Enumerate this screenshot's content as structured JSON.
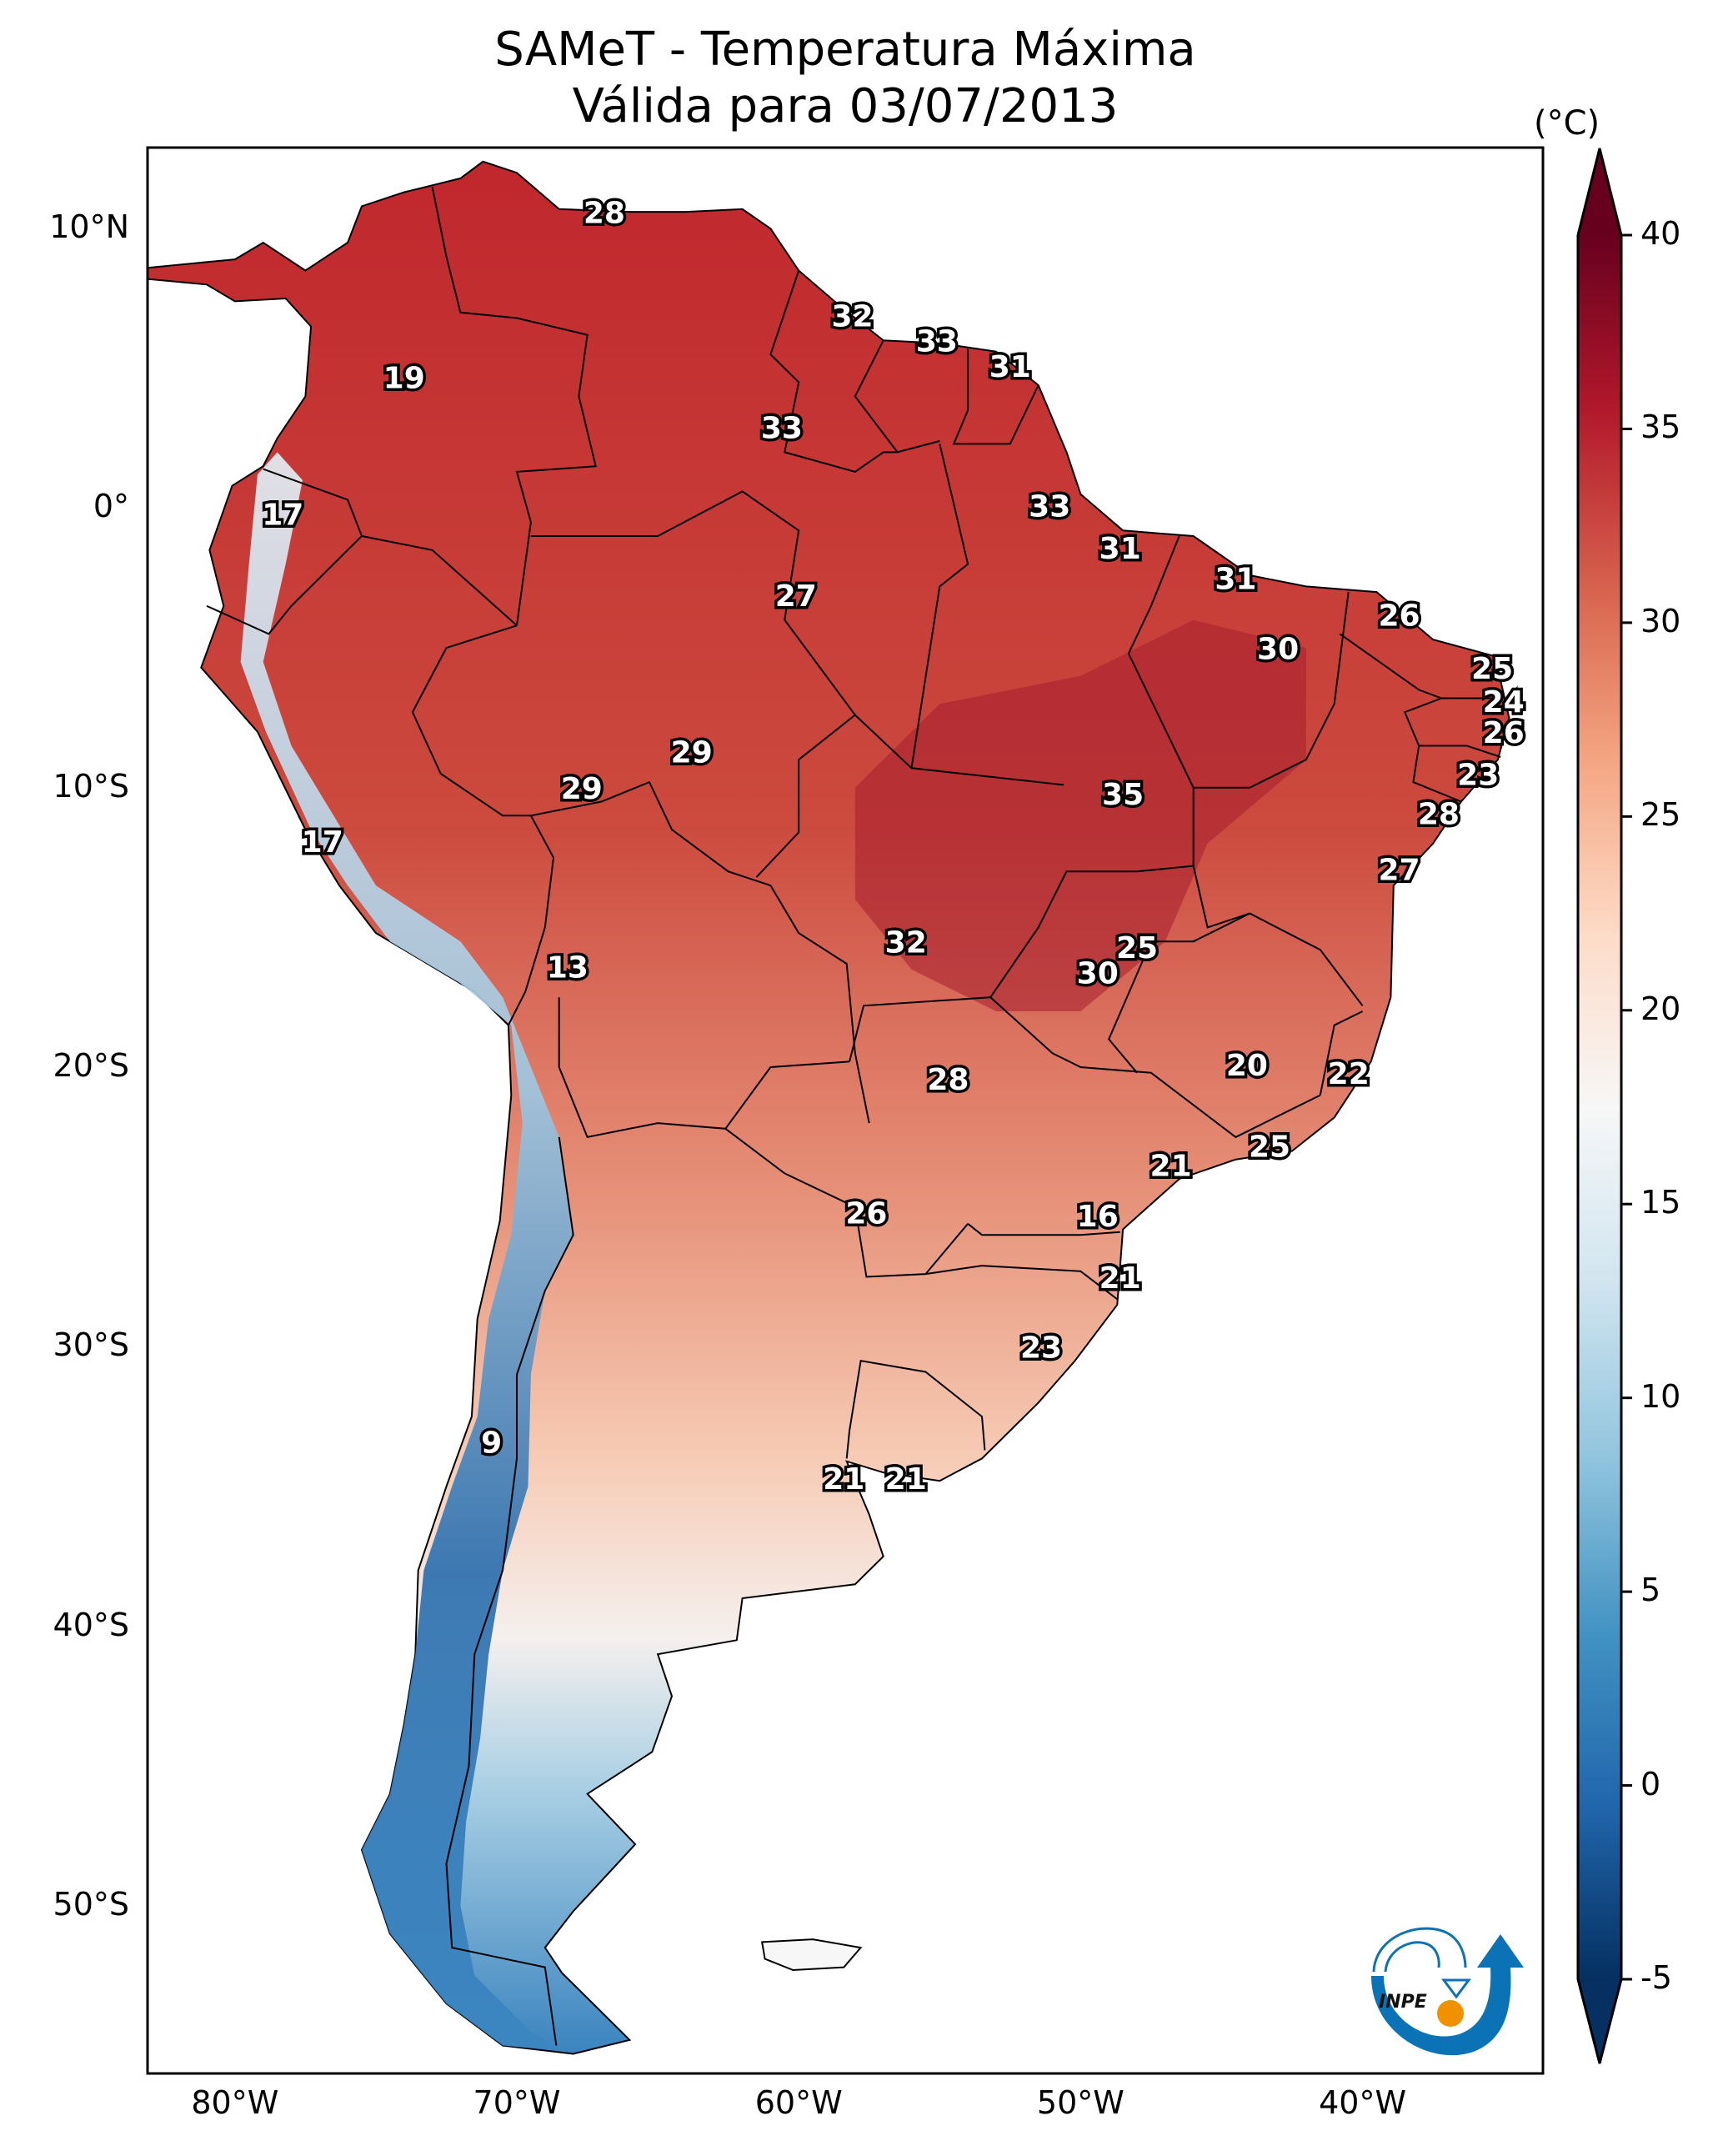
{
  "title": {
    "line1": "SAMeT - Temperatura Máxima",
    "line2": "Válida para 03/07/2013"
  },
  "axes": {
    "lat_ticks": [
      {
        "value": 10,
        "label": "10°N"
      },
      {
        "value": 0,
        "label": "0°"
      },
      {
        "value": -10,
        "label": "10°S"
      },
      {
        "value": -20,
        "label": "20°S"
      },
      {
        "value": -30,
        "label": "30°S"
      },
      {
        "value": -40,
        "label": "40°S"
      },
      {
        "value": -50,
        "label": "50°S"
      }
    ],
    "lon_ticks": [
      {
        "value": -80,
        "label": "80°W"
      },
      {
        "value": -70,
        "label": "70°W"
      },
      {
        "value": -60,
        "label": "60°W"
      },
      {
        "value": -50,
        "label": "50°W"
      },
      {
        "value": -40,
        "label": "40°W"
      }
    ],
    "lon_range": [
      -83.1,
      -33.6
    ],
    "lat_range": [
      -56.0,
      12.9
    ]
  },
  "colorbar": {
    "unit": "(°C)",
    "min": -5,
    "max": 40,
    "extend": "both",
    "colormap": "RdBu_r",
    "ticks": [
      {
        "value": 40,
        "label": "40"
      },
      {
        "value": 35,
        "label": "35"
      },
      {
        "value": 30,
        "label": "30"
      },
      {
        "value": 25,
        "label": "25"
      },
      {
        "value": 20,
        "label": "20"
      },
      {
        "value": 15,
        "label": "15"
      },
      {
        "value": 10,
        "label": "10"
      },
      {
        "value": 5,
        "label": "5"
      },
      {
        "value": 0,
        "label": "0"
      },
      {
        "value": -5,
        "label": "-5"
      }
    ],
    "colors": [
      "#053061",
      "#2166ac",
      "#4393c3",
      "#92c5de",
      "#d1e5f0",
      "#f7f7f7",
      "#fddbc7",
      "#f4a582",
      "#d6604d",
      "#b2182b",
      "#67001f"
    ]
  },
  "logo": {
    "text": "INPE",
    "colors": {
      "blue": "#0a72b5",
      "orange": "#f29100"
    }
  },
  "chart_data": {
    "type": "map",
    "title": "SAMeT - Temperatura Máxima — Válida para 03/07/2013",
    "variable": "Maximum temperature (°C)",
    "station_labels": [
      {
        "lon": -66.9,
        "lat": 10.5,
        "value": 28
      },
      {
        "lon": -74.0,
        "lat": 4.6,
        "value": 19
      },
      {
        "lon": -78.3,
        "lat": -0.3,
        "value": 17
      },
      {
        "lon": -58.1,
        "lat": 6.8,
        "value": 32
      },
      {
        "lon": -55.1,
        "lat": 5.9,
        "value": 33
      },
      {
        "lon": -52.5,
        "lat": 5.0,
        "value": 31
      },
      {
        "lon": -60.6,
        "lat": 2.8,
        "value": 33
      },
      {
        "lon": -51.1,
        "lat": 0.0,
        "value": 33
      },
      {
        "lon": -48.6,
        "lat": -1.5,
        "value": 31
      },
      {
        "lon": -44.5,
        "lat": -2.6,
        "value": 31
      },
      {
        "lon": -60.1,
        "lat": -3.2,
        "value": 27
      },
      {
        "lon": -38.7,
        "lat": -3.9,
        "value": 26
      },
      {
        "lon": -43.0,
        "lat": -5.1,
        "value": 30
      },
      {
        "lon": -35.4,
        "lat": -5.8,
        "value": 25
      },
      {
        "lon": -35.0,
        "lat": -7.0,
        "value": 24
      },
      {
        "lon": -35.0,
        "lat": -8.1,
        "value": 26
      },
      {
        "lon": -63.8,
        "lat": -8.8,
        "value": 29
      },
      {
        "lon": -35.9,
        "lat": -9.6,
        "value": 23
      },
      {
        "lon": -67.7,
        "lat": -10.1,
        "value": 29
      },
      {
        "lon": -48.5,
        "lat": -10.3,
        "value": 35
      },
      {
        "lon": -37.3,
        "lat": -11.0,
        "value": 28
      },
      {
        "lon": -76.9,
        "lat": -12.0,
        "value": 17
      },
      {
        "lon": -38.7,
        "lat": -13.0,
        "value": 27
      },
      {
        "lon": -56.2,
        "lat": -15.6,
        "value": 32
      },
      {
        "lon": -48.0,
        "lat": -15.8,
        "value": 25
      },
      {
        "lon": -68.2,
        "lat": -16.5,
        "value": 13
      },
      {
        "lon": -49.4,
        "lat": -16.7,
        "value": 30
      },
      {
        "lon": -44.1,
        "lat": -20.0,
        "value": 20
      },
      {
        "lon": -40.5,
        "lat": -20.3,
        "value": 22
      },
      {
        "lon": -54.7,
        "lat": -20.5,
        "value": 28
      },
      {
        "lon": -43.3,
        "lat": -22.9,
        "value": 25
      },
      {
        "lon": -46.8,
        "lat": -23.6,
        "value": 21
      },
      {
        "lon": -57.6,
        "lat": -25.3,
        "value": 26
      },
      {
        "lon": -49.4,
        "lat": -25.4,
        "value": 16
      },
      {
        "lon": -48.6,
        "lat": -27.6,
        "value": 21
      },
      {
        "lon": -51.4,
        "lat": -30.1,
        "value": 23
      },
      {
        "lon": -70.9,
        "lat": -33.5,
        "value": 9
      },
      {
        "lon": -58.4,
        "lat": -34.8,
        "value": 21
      },
      {
        "lon": -56.2,
        "lat": -34.8,
        "value": 21
      }
    ]
  }
}
